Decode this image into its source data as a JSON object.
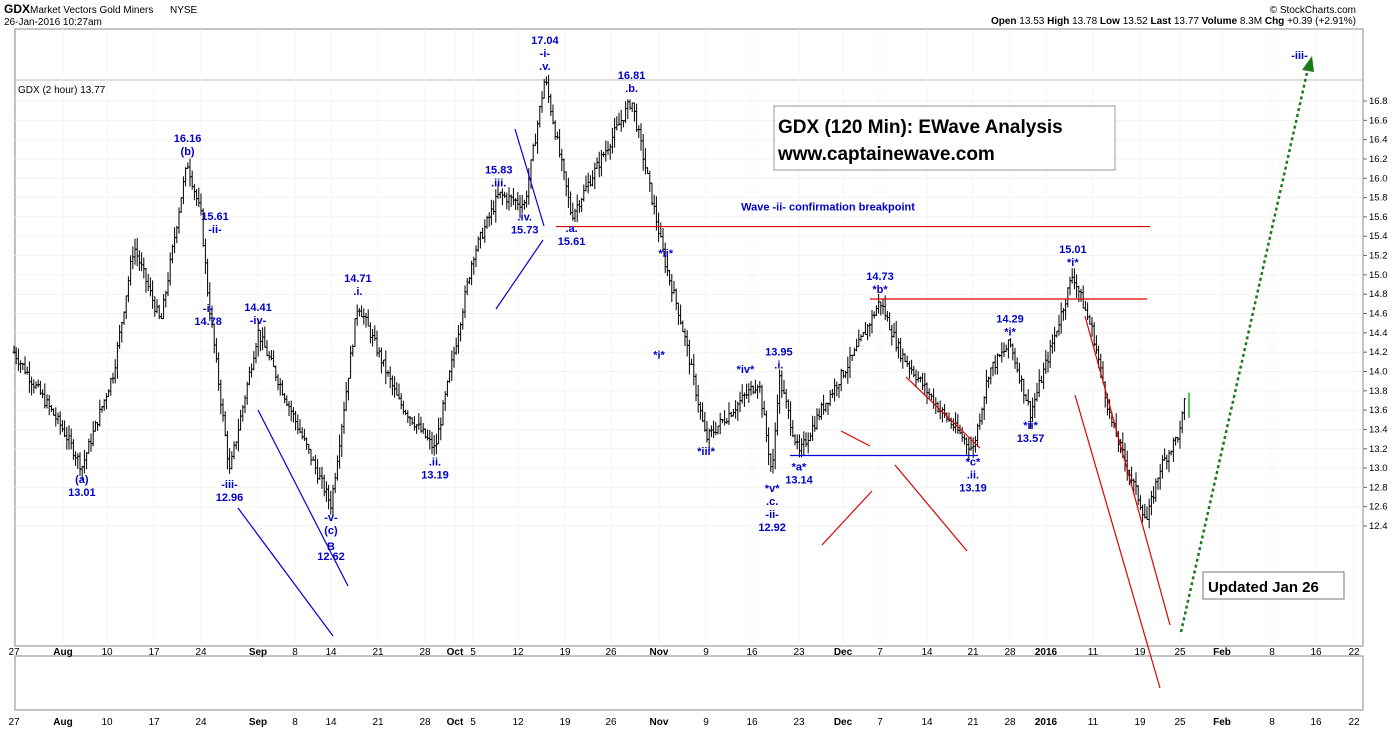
{
  "header": {
    "symbol": "GDX",
    "name": "Market Vectors Gold Miners",
    "exchange": "NYSE",
    "datetime": "26-Jan-2016 10:27am",
    "copyright": "© StockCharts.com",
    "stats": [
      {
        "label": "Open",
        "value": "13.53"
      },
      {
        "label": "High",
        "value": "13.78"
      },
      {
        "label": "Low",
        "value": "13.52"
      },
      {
        "label": "Last",
        "value": "13.77"
      },
      {
        "label": "Volume",
        "value": "8.3M"
      },
      {
        "label": "Chg",
        "value": "+0.39 (+2.91%)"
      }
    ],
    "legend": "GDX (2 hour) 13.77"
  },
  "boxes": {
    "title_line1": "GDX (120 Min): EWave Analysis",
    "title_line2": "www.captainewave.com",
    "updated": "Updated Jan 26"
  },
  "colors": {
    "wave_labels": "#0000cc",
    "red_lines": "#e00000",
    "blue_lines": "#0000dd",
    "projection": "#1a7a1a",
    "bars": "#000000"
  },
  "chart_data": {
    "type": "bar",
    "subtype": "ohlc",
    "interval": "2 hour",
    "y_axis": {
      "side": "right",
      "range": [
        12.35,
        17.0
      ],
      "ticks": [
        "12.4",
        "12.6",
        "12.8",
        "13.0",
        "13.2",
        "13.4",
        "13.6",
        "13.8",
        "14.0",
        "14.2",
        "14.4",
        "14.6",
        "14.8",
        "15.0",
        "15.2",
        "15.4",
        "15.6",
        "15.8",
        "16.0",
        "16.2",
        "16.4",
        "16.6",
        "16.8"
      ]
    },
    "x_axis": {
      "ticks": [
        "27",
        "Aug",
        "10",
        "17",
        "24",
        "Sep",
        "8",
        "14",
        "21",
        "28",
        "Oct",
        "5",
        "12",
        "19",
        "26",
        "Nov",
        "9",
        "16",
        "23",
        "Dec",
        "7",
        "14",
        "21",
        "28",
        "2016",
        "11",
        "19",
        "25",
        "Feb",
        "8",
        "16",
        "22"
      ],
      "bold_ticks": [
        "Aug",
        "Sep",
        "Oct",
        "Nov",
        "Dec",
        "2016",
        "Feb"
      ]
    },
    "price_path": [
      {
        "date": "2015-07-27",
        "price": 14.2
      },
      {
        "date": "2015-08-03",
        "price": 13.4
      },
      {
        "date": "2015-08-06",
        "price": 13.01
      },
      {
        "date": "2015-08-11",
        "price": 14.0
      },
      {
        "date": "2015-08-14",
        "price": 15.3
      },
      {
        "date": "2015-08-18",
        "price": 14.5
      },
      {
        "date": "2015-08-21",
        "price": 15.8
      },
      {
        "date": "2015-08-22",
        "price": 16.16
      },
      {
        "date": "2015-08-24",
        "price": 15.61
      },
      {
        "date": "2015-08-25",
        "price": 14.78
      },
      {
        "date": "2015-08-28",
        "price": 12.96
      },
      {
        "date": "2015-09-01",
        "price": 14.41
      },
      {
        "date": "2015-09-08",
        "price": 13.5
      },
      {
        "date": "2015-09-14",
        "price": 12.62
      },
      {
        "date": "2015-09-18",
        "price": 14.71
      },
      {
        "date": "2015-09-24",
        "price": 13.7
      },
      {
        "date": "2015-09-29",
        "price": 13.19
      },
      {
        "date": "2015-10-05",
        "price": 15.2
      },
      {
        "date": "2015-10-09",
        "price": 15.83
      },
      {
        "date": "2015-10-13",
        "price": 15.73
      },
      {
        "date": "2015-10-16",
        "price": 17.04
      },
      {
        "date": "2015-10-20",
        "price": 15.61
      },
      {
        "date": "2015-10-29",
        "price": 16.81
      },
      {
        "date": "2015-11-03",
        "price": 15.1
      },
      {
        "date": "2015-11-05",
        "price": 14.6
      },
      {
        "date": "2015-11-06",
        "price": 14.3
      },
      {
        "date": "2015-11-09",
        "price": 13.3
      },
      {
        "date": "2015-11-13",
        "price": 13.6
      },
      {
        "date": "2015-11-17",
        "price": 13.9
      },
      {
        "date": "2015-11-19",
        "price": 12.92
      },
      {
        "date": "2015-11-20",
        "price": 13.95
      },
      {
        "date": "2015-11-23",
        "price": 13.14
      },
      {
        "date": "2015-11-27",
        "price": 13.6
      },
      {
        "date": "2015-12-03",
        "price": 14.2
      },
      {
        "date": "2015-12-07",
        "price": 14.73
      },
      {
        "date": "2015-12-10",
        "price": 14.2
      },
      {
        "date": "2015-12-16",
        "price": 13.6
      },
      {
        "date": "2015-12-21",
        "price": 13.19
      },
      {
        "date": "2015-12-24",
        "price": 14.0
      },
      {
        "date": "2015-12-28",
        "price": 14.29
      },
      {
        "date": "2016-01-01",
        "price": 13.57
      },
      {
        "date": "2016-01-05",
        "price": 14.3
      },
      {
        "date": "2016-01-08",
        "price": 15.01
      },
      {
        "date": "2016-01-11",
        "price": 14.4
      },
      {
        "date": "2016-01-14",
        "price": 13.5
      },
      {
        "date": "2016-01-20",
        "price": 12.45
      },
      {
        "date": "2016-01-22",
        "price": 13.0
      },
      {
        "date": "2016-01-25",
        "price": 13.38
      },
      {
        "date": "2016-01-26",
        "price": 13.77
      }
    ],
    "wave_labels": [
      {
        "date": "2015-08-06",
        "price": 13.01,
        "lines": [
          "(a)",
          "13.01"
        ],
        "pos": "below"
      },
      {
        "date": "2015-08-22",
        "price": 16.16,
        "lines": [
          "16.16",
          "(b)"
        ],
        "pos": "above"
      },
      {
        "date": "2015-08-24",
        "price": 15.61,
        "lines": [
          "15.61",
          "-ii-"
        ],
        "pos": "right"
      },
      {
        "date": "2015-08-25",
        "price": 14.78,
        "lines": [
          "-i-",
          "14.78"
        ],
        "pos": "below"
      },
      {
        "date": "2015-08-28",
        "price": 12.96,
        "lines": [
          "-iii-",
          "12.96"
        ],
        "pos": "below"
      },
      {
        "date": "2015-09-01",
        "price": 14.41,
        "lines": [
          "14.41",
          "-iv-"
        ],
        "pos": "above"
      },
      {
        "date": "2015-09-14",
        "price": 12.62,
        "lines": [
          "-v-",
          "(c)",
          "B",
          "12.62"
        ],
        "pos": "below"
      },
      {
        "date": "2015-09-18",
        "price": 14.71,
        "lines": [
          "14.71",
          ".i."
        ],
        "pos": "above"
      },
      {
        "date": "2015-09-29",
        "price": 13.19,
        "lines": [
          ".ii.",
          "13.19"
        ],
        "pos": "below"
      },
      {
        "date": "2015-10-09",
        "price": 15.83,
        "lines": [
          "15.83",
          ".iii."
        ],
        "pos": "above"
      },
      {
        "date": "2015-10-13",
        "price": 15.73,
        "lines": [
          ".iv.",
          "15.73"
        ],
        "pos": "below"
      },
      {
        "date": "2015-10-16",
        "price": 17.04,
        "lines": [
          "17.04",
          "-i-",
          ".v."
        ],
        "pos": "above"
      },
      {
        "date": "2015-10-20",
        "price": 15.61,
        "lines": [
          ".a.",
          "15.61"
        ],
        "pos": "below"
      },
      {
        "date": "2015-10-29",
        "price": 16.81,
        "lines": [
          "16.81",
          ".b."
        ],
        "pos": "above"
      },
      {
        "date": "2015-11-03",
        "price": 15.1,
        "lines": [
          "*ii*"
        ],
        "pos": "above"
      },
      {
        "date": "2015-11-02",
        "price": 14.3,
        "lines": [
          "*i*"
        ],
        "pos": "below"
      },
      {
        "date": "2015-11-09",
        "price": 13.3,
        "lines": [
          "*iii*"
        ],
        "pos": "below"
      },
      {
        "date": "2015-11-15",
        "price": 13.9,
        "lines": [
          "*iv*"
        ],
        "pos": "above"
      },
      {
        "date": "2015-11-19",
        "price": 12.92,
        "lines": [
          "*v*",
          ".c.",
          "-ii-",
          "12.92"
        ],
        "pos": "below"
      },
      {
        "date": "2015-11-20",
        "price": 13.95,
        "lines": [
          "13.95",
          ".i."
        ],
        "pos": "above"
      },
      {
        "date": "2015-11-23",
        "price": 13.14,
        "lines": [
          "*a*",
          "13.14"
        ],
        "pos": "below"
      },
      {
        "date": "2015-12-07",
        "price": 14.73,
        "lines": [
          "14.73",
          "*b*"
        ],
        "pos": "above"
      },
      {
        "date": "2015-12-21",
        "price": 13.19,
        "lines": [
          "*c*",
          ".ii.",
          "13.19"
        ],
        "pos": "below"
      },
      {
        "date": "2015-12-28",
        "price": 14.29,
        "lines": [
          "14.29",
          "*i*"
        ],
        "pos": "above"
      },
      {
        "date": "2016-01-01",
        "price": 13.57,
        "lines": [
          "*ii*",
          "13.57"
        ],
        "pos": "below"
      },
      {
        "date": "2016-01-08",
        "price": 15.01,
        "lines": [
          "15.01",
          "*i*"
        ],
        "pos": "above"
      },
      {
        "date": "2016-02-13",
        "price": 17.15,
        "lines": [
          "-iii-"
        ],
        "pos": "above"
      }
    ],
    "annotations": {
      "breakpoint_text": "Wave -ii- confirmation breakpoint",
      "breakpoint_level": 15.5,
      "resistance_level": 14.75,
      "support_level": 13.13
    }
  }
}
